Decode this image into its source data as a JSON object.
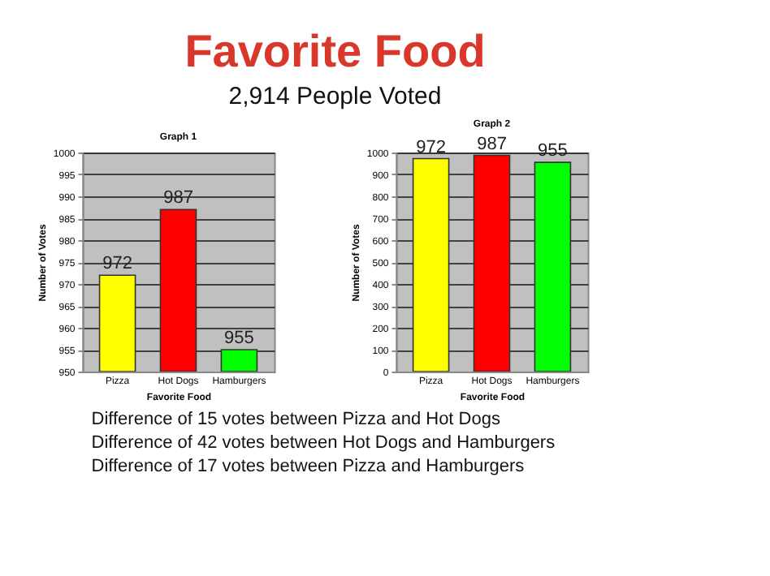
{
  "chart_data": [
    {
      "type": "bar",
      "title": "Graph 1",
      "categories": [
        "Pizza",
        "Hot Dogs",
        "Hamburgers"
      ],
      "values": [
        972,
        987,
        955
      ],
      "colors": [
        "#ffff00",
        "#ff0000",
        "#00ff00"
      ],
      "xlabel": "Favorite Food",
      "ylabel": "Number of Votes",
      "ylim": [
        950,
        1000
      ],
      "yticks": [
        950,
        955,
        960,
        965,
        970,
        975,
        980,
        985,
        990,
        995,
        1000
      ],
      "grid": "y",
      "data_labels": true,
      "annotations": [
        "Favorite Food",
        "2,914 People Voted",
        "Difference of 15 votes between Pizza and Hot Dogs",
        "Difference of 42 votes between Hot Dogs and Hamburgers",
        "Difference of 17 votes between Pizza and Hamburgers"
      ]
    },
    {
      "type": "bar",
      "title": "Graph 2",
      "categories": [
        "Pizza",
        "Hot Dogs",
        "Hamburgers"
      ],
      "values": [
        972,
        987,
        955
      ],
      "colors": [
        "#ffff00",
        "#ff0000",
        "#00ff00"
      ],
      "xlabel": "Favorite Food",
      "ylabel": "Number of Votes",
      "ylim": [
        0,
        1000
      ],
      "yticks": [
        0,
        100,
        200,
        300,
        400,
        500,
        600,
        700,
        800,
        900,
        1000
      ],
      "grid": "y",
      "data_labels": true
    }
  ]
}
